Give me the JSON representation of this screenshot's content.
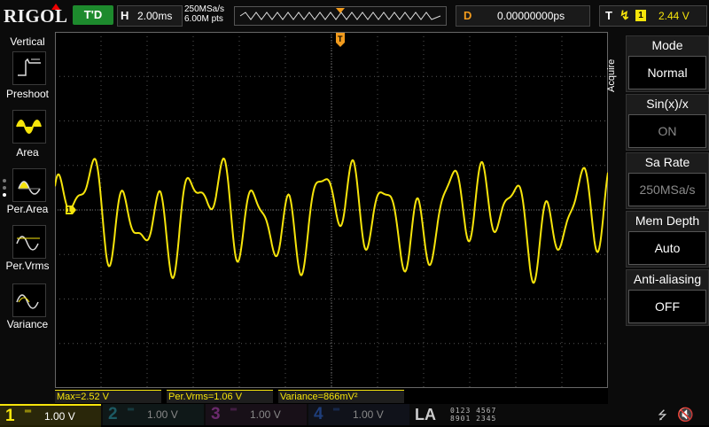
{
  "header": {
    "logo": "RIGOL",
    "run_status": "T'D",
    "horizontal": {
      "label": "H",
      "timebase": "2.00ms"
    },
    "sample_rate": "250MSa/s",
    "memory_points": "6.00M pts",
    "delay": {
      "label": "D",
      "value": "0.00000000ps"
    },
    "trigger": {
      "label": "T",
      "edge_icon": "rising-edge-icon",
      "source": "1",
      "level": "2.44 V"
    }
  },
  "left_menu": {
    "title": "Vertical",
    "items": [
      {
        "label": "Preshoot",
        "icon": "preshoot-icon"
      },
      {
        "label": "Area",
        "icon": "area-icon"
      },
      {
        "label": "Per.Area",
        "icon": "per-area-icon"
      },
      {
        "label": "Per.Vrms",
        "icon": "per-vrms-icon"
      },
      {
        "label": "Variance",
        "icon": "variance-icon"
      }
    ]
  },
  "channel_marker": "1",
  "trigger_marker": "T",
  "right_menu": {
    "section": "Acquire",
    "items": [
      {
        "title": "Mode",
        "value": "Normal",
        "has_arrow": true,
        "dim": false
      },
      {
        "title": "Sin(x)/x",
        "value": "ON",
        "has_arrow": false,
        "dim": true
      },
      {
        "title": "Sa Rate",
        "value": "250MSa/s",
        "has_arrow": false,
        "dim": true
      },
      {
        "title": "Mem Depth",
        "value": "Auto",
        "has_arrow": true,
        "dim": false
      },
      {
        "title": "Anti-aliasing",
        "value": "OFF",
        "has_arrow": false,
        "dim": false
      }
    ]
  },
  "measurements": [
    {
      "text": "Max=2.52 V"
    },
    {
      "text": "Per.Vrms=1.06 V"
    },
    {
      "text": "Variance=866mV²"
    }
  ],
  "channels": [
    {
      "num": "1",
      "coupling": "DC",
      "scale": "1.00 V",
      "color": "#f6e40b",
      "active": true
    },
    {
      "num": "2",
      "coupling": "DC",
      "scale": "1.00 V",
      "color": "#1fb5c7",
      "active": false
    },
    {
      "num": "3",
      "coupling": "DC",
      "scale": "1.00 V",
      "color": "#d14fd6",
      "active": false
    },
    {
      "num": "4",
      "coupling": "DC",
      "scale": "1.00 V",
      "color": "#2d6fe6",
      "active": false
    }
  ],
  "logic": {
    "label": "LA",
    "digits_row1": "0123 4567",
    "digits_row2": "8901 2345"
  },
  "colors": {
    "ch1": "#f6e40b",
    "trigger": "#f29b1d",
    "accent_blue": "#2ea7ff",
    "run_green": "#1d8a2d"
  }
}
